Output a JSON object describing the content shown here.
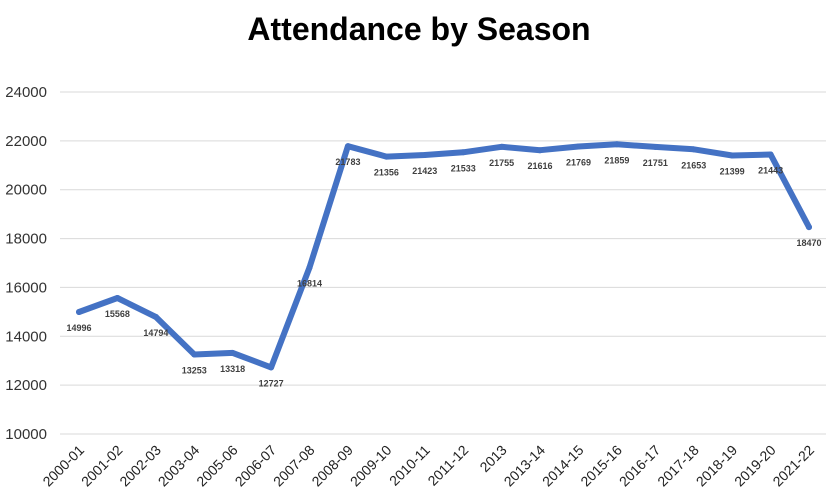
{
  "chart_data": {
    "type": "line",
    "title": "Attendance by Season",
    "xlabel": "",
    "ylabel": "",
    "ylim": [
      10000,
      24000
    ],
    "yticks": [
      10000,
      12000,
      14000,
      16000,
      18000,
      20000,
      22000,
      24000
    ],
    "grid": true,
    "legend": "none",
    "series_color": "#4472c4",
    "categories": [
      "2000-01",
      "2001-02",
      "2002-03",
      "2003-04",
      "2005-06",
      "2006-07",
      "2007-08",
      "2008-09",
      "2009-10",
      "2010-11",
      "2011-12",
      "2013",
      "2013-14",
      "2014-15",
      "2015-16",
      "2016-17",
      "2017-18",
      "2018-19",
      "2019-20",
      "2021-22"
    ],
    "series": [
      {
        "name": "Attendance",
        "values": [
          14996,
          15568,
          14794,
          13253,
          13318,
          12727,
          16814,
          21783,
          21356,
          21423,
          21533,
          21755,
          21616,
          21769,
          21859,
          21751,
          21653,
          21399,
          21443,
          18470
        ]
      }
    ]
  }
}
